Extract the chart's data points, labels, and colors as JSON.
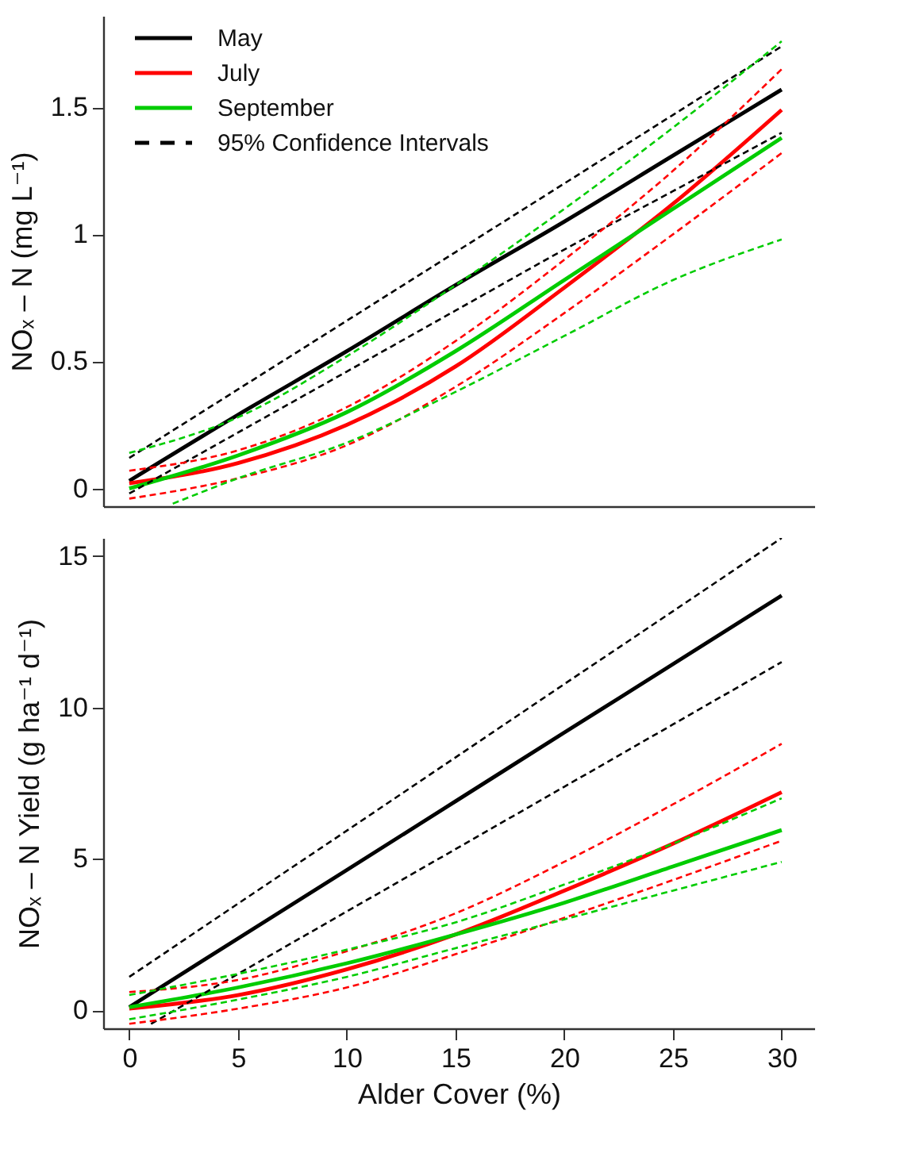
{
  "chart_data": [
    {
      "type": "line",
      "ylabel": "NOₓ – N (mg L⁻¹)",
      "x": [
        0,
        5,
        10,
        15,
        20,
        25,
        30
      ],
      "xlim": [
        -1.2,
        31.5
      ],
      "xticks": [
        0,
        5,
        10,
        15,
        20,
        25,
        30
      ],
      "ylim": [
        -0.07,
        1.86
      ],
      "yticks": [
        0,
        0.5,
        1,
        1.5
      ],
      "tick_labels": "y",
      "grid": false,
      "legend": "top left",
      "series": [
        {
          "name": "May",
          "color": "#000000",
          "line_style": "solid",
          "values": [
            0.03,
            0.29,
            0.54,
            0.8,
            1.05,
            1.31,
            1.57
          ]
        },
        {
          "name": "July",
          "color": "#ff0000",
          "line_style": "solid",
          "values": [
            0.02,
            0.1,
            0.25,
            0.48,
            0.79,
            1.12,
            1.49
          ]
        },
        {
          "name": "September",
          "color": "#00cc00",
          "line_style": "solid",
          "values": [
            0.0,
            0.13,
            0.3,
            0.54,
            0.82,
            1.1,
            1.38
          ]
        },
        {
          "name": "95% Confidence Intervals",
          "color": "#000000",
          "line_style": "dashed",
          "values": [
            0.12,
            0.39,
            0.66,
            0.93,
            1.2,
            1.47,
            1.74
          ]
        },
        {
          "color": "#000000",
          "line_style": "dashed",
          "values": [
            -0.02,
            0.22,
            0.46,
            0.7,
            0.94,
            1.17,
            1.4
          ]
        },
        {
          "color": "#ff0000",
          "line_style": "dashed",
          "values": [
            0.07,
            0.15,
            0.32,
            0.58,
            0.9,
            1.25,
            1.65
          ]
        },
        {
          "color": "#ff0000",
          "line_style": "dashed",
          "values": [
            -0.04,
            0.04,
            0.17,
            0.4,
            0.69,
            1.0,
            1.32
          ]
        },
        {
          "color": "#00cc00",
          "line_style": "dashed",
          "values": [
            0.14,
            0.28,
            0.52,
            0.8,
            1.1,
            1.42,
            1.76
          ]
        },
        {
          "color": "#00cc00",
          "line_style": "dashed",
          "x": [
            2,
            5,
            10,
            15,
            20,
            25,
            30
          ],
          "values": [
            -0.06,
            0.04,
            0.18,
            0.38,
            0.6,
            0.82,
            0.98
          ]
        }
      ]
    },
    {
      "type": "line",
      "xlabel": "Alder Cover (%)",
      "ylabel": "NOₓ – N Yield (g ha⁻¹ d⁻¹)",
      "x": [
        0,
        5,
        10,
        15,
        20,
        25,
        30
      ],
      "xlim": [
        -1.2,
        31.5
      ],
      "xticks": [
        0,
        5,
        10,
        15,
        20,
        25,
        30
      ],
      "ylim": [
        -0.6,
        15.6
      ],
      "yticks": [
        0,
        5,
        10,
        15
      ],
      "grid": false,
      "series": [
        {
          "color": "#000000",
          "line_style": "solid",
          "values": [
            0.1,
            2.37,
            4.63,
            6.9,
            9.17,
            11.43,
            13.7
          ]
        },
        {
          "color": "#ff0000",
          "line_style": "solid",
          "values": [
            0.05,
            0.5,
            1.35,
            2.5,
            3.95,
            5.5,
            7.2
          ]
        },
        {
          "color": "#00cc00",
          "line_style": "solid",
          "values": [
            0.1,
            0.75,
            1.55,
            2.5,
            3.55,
            4.75,
            5.95
          ]
        },
        {
          "color": "#000000",
          "line_style": "dashed",
          "values": [
            1.1,
            3.52,
            5.93,
            8.35,
            10.77,
            13.18,
            15.6
          ]
        },
        {
          "color": "#000000",
          "line_style": "dashed",
          "x": [
            1,
            5,
            10,
            15,
            20,
            25,
            30
          ],
          "values": [
            -0.45,
            1.2,
            3.26,
            5.32,
            7.38,
            9.44,
            11.5
          ]
        },
        {
          "color": "#ff0000",
          "line_style": "dashed",
          "values": [
            0.6,
            1.0,
            1.95,
            3.2,
            4.9,
            6.8,
            8.8
          ]
        },
        {
          "color": "#ff0000",
          "line_style": "dashed",
          "values": [
            -0.45,
            0.05,
            0.75,
            1.85,
            3.05,
            4.3,
            5.6
          ]
        },
        {
          "color": "#00cc00",
          "line_style": "dashed",
          "values": [
            0.5,
            1.2,
            2.0,
            2.9,
            4.15,
            5.5,
            7.0
          ]
        },
        {
          "color": "#00cc00",
          "line_style": "dashed",
          "values": [
            -0.3,
            0.35,
            1.1,
            2.05,
            3.0,
            3.95,
            4.9
          ]
        }
      ]
    }
  ]
}
